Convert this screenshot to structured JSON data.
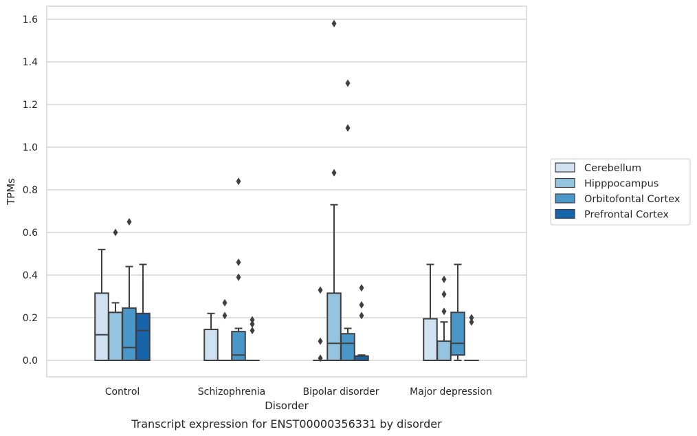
{
  "chart_data": {
    "type": "box",
    "caption": "Transcript expression for ENST00000356331 by disorder",
    "xlabel": "Disorder",
    "ylabel": "TPMs",
    "ylim": [
      -0.08,
      1.66
    ],
    "yticks": [
      0.0,
      0.2,
      0.4,
      0.6,
      0.8,
      1.0,
      1.2,
      1.4,
      1.6
    ],
    "ytick_labels": [
      "0.0",
      "0.2",
      "0.4",
      "0.6",
      "0.8",
      "1.0",
      "1.2",
      "1.4",
      "1.6"
    ],
    "grid": true,
    "legend_position": "right",
    "categories": [
      "Control",
      "Schizophrenia",
      "Bipolar disorder",
      "Major depression"
    ],
    "series": [
      {
        "name": "Cerebellum",
        "color": "#d0e1f2",
        "boxes": [
          {
            "q1": 0.0,
            "median": 0.12,
            "q3": 0.315,
            "whisker_low": 0.0,
            "whisker_high": 0.52,
            "outliers": []
          },
          {
            "q1": 0.0,
            "median": 0.0,
            "q3": 0.145,
            "whisker_low": 0.0,
            "whisker_high": 0.22,
            "outliers": []
          },
          {
            "q1": 0.0,
            "median": 0.0,
            "q3": 0.0,
            "whisker_low": 0.0,
            "whisker_high": 0.0,
            "outliers": [
              0.33,
              0.09,
              0.01
            ]
          },
          {
            "q1": 0.0,
            "median": 0.0,
            "q3": 0.195,
            "whisker_low": 0.0,
            "whisker_high": 0.45,
            "outliers": []
          }
        ]
      },
      {
        "name": "Hipppocampus",
        "color": "#94c4df",
        "boxes": [
          {
            "q1": 0.0,
            "median": 0.225,
            "q3": 0.225,
            "whisker_low": 0.0,
            "whisker_high": 0.27,
            "outliers": [
              0.6
            ]
          },
          {
            "q1": 0.0,
            "median": 0.0,
            "q3": 0.0,
            "whisker_low": 0.0,
            "whisker_high": 0.0,
            "outliers": [
              0.27,
              0.21
            ]
          },
          {
            "q1": 0.0,
            "median": 0.08,
            "q3": 0.315,
            "whisker_low": 0.0,
            "whisker_high": 0.73,
            "outliers": [
              1.58,
              0.88
            ]
          },
          {
            "q1": 0.0,
            "median": 0.0,
            "q3": 0.09,
            "whisker_low": 0.0,
            "whisker_high": 0.18,
            "outliers": [
              0.38,
              0.31,
              0.23
            ]
          }
        ]
      },
      {
        "name": "Orbitofontal Cortex",
        "color": "#4a98c9",
        "boxes": [
          {
            "q1": 0.0,
            "median": 0.06,
            "q3": 0.245,
            "whisker_low": 0.0,
            "whisker_high": 0.44,
            "outliers": [
              0.65
            ]
          },
          {
            "q1": 0.0,
            "median": 0.025,
            "q3": 0.135,
            "whisker_low": 0.0,
            "whisker_high": 0.15,
            "outliers": [
              0.84,
              0.46,
              0.39
            ]
          },
          {
            "q1": 0.0,
            "median": 0.08,
            "q3": 0.125,
            "whisker_low": 0.0,
            "whisker_high": 0.15,
            "outliers": [
              1.3,
              1.09
            ]
          },
          {
            "q1": 0.025,
            "median": 0.08,
            "q3": 0.225,
            "whisker_low": 0.0,
            "whisker_high": 0.45,
            "outliers": []
          }
        ]
      },
      {
        "name": "Prefrontal Cortex",
        "color": "#1764ab",
        "boxes": [
          {
            "q1": 0.0,
            "median": 0.14,
            "q3": 0.22,
            "whisker_low": 0.0,
            "whisker_high": 0.45,
            "outliers": []
          },
          {
            "q1": 0.0,
            "median": 0.0,
            "q3": 0.0,
            "whisker_low": 0.0,
            "whisker_high": 0.0,
            "outliers": [
              0.19,
              0.17,
              0.14
            ]
          },
          {
            "q1": 0.0,
            "median": 0.02,
            "q3": 0.02,
            "whisker_low": 0.0,
            "whisker_high": 0.025,
            "outliers": [
              0.34,
              0.26,
              0.21
            ]
          },
          {
            "q1": 0.0,
            "median": 0.0,
            "q3": 0.0,
            "whisker_low": 0.0,
            "whisker_high": 0.0,
            "outliers": [
              0.2,
              0.18
            ]
          }
        ]
      }
    ]
  }
}
